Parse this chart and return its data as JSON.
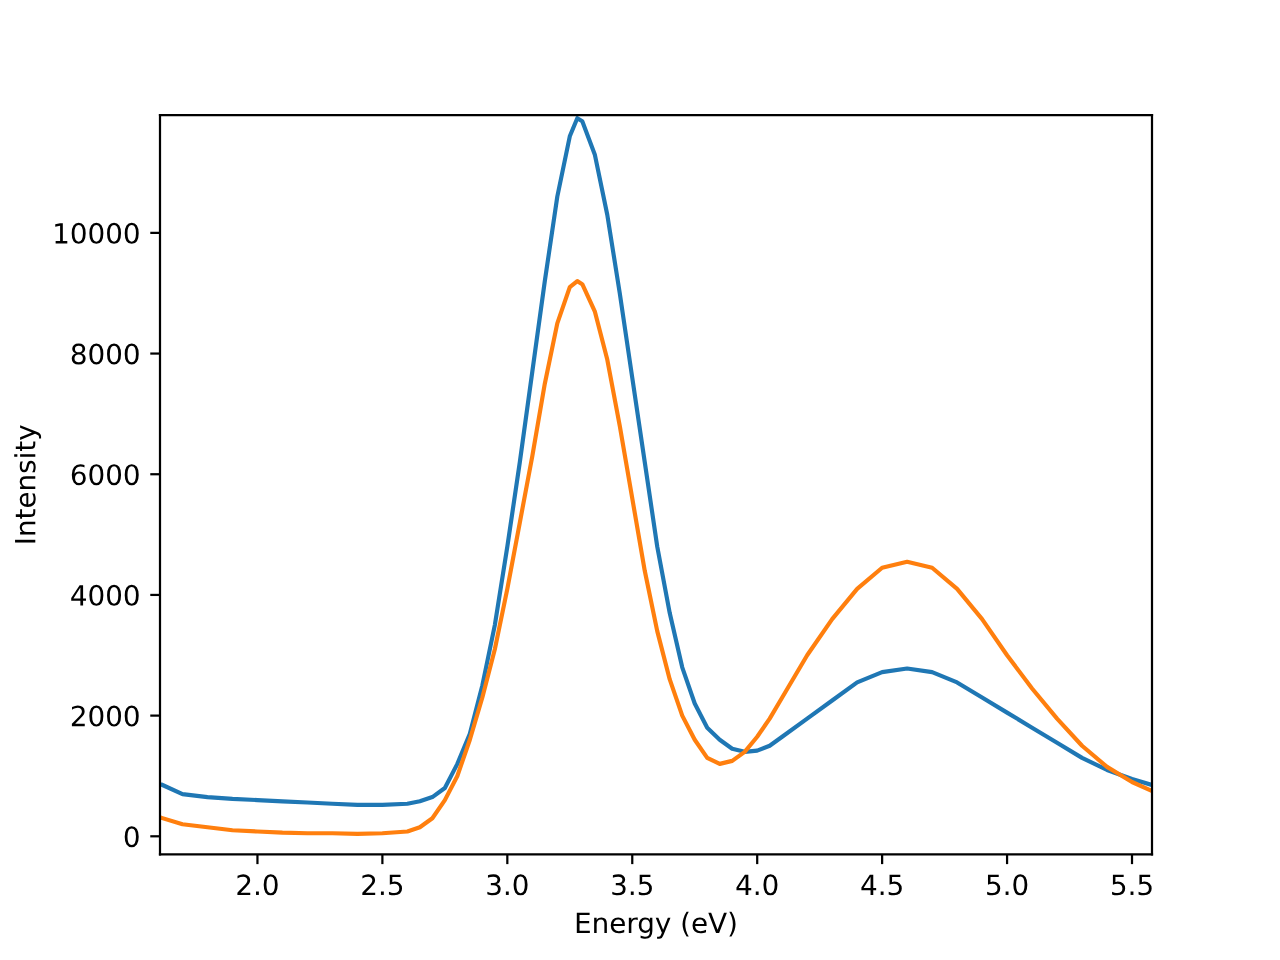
{
  "chart_data": {
    "type": "line",
    "xlabel": "Energy (eV)",
    "ylabel": "Intensity",
    "xlim": [
      1.61,
      5.58
    ],
    "xticks": [
      {
        "value": 2,
        "label": "2.0"
      },
      2.5,
      {
        "value": 3,
        "label": "3.0"
      },
      3.5,
      {
        "value": 4,
        "label": "4.0"
      },
      4.5,
      {
        "value": 5,
        "label": "5.0"
      },
      5.5
    ],
    "ylim": [
      -300,
      11950
    ],
    "yticks": [
      0,
      2000,
      4000,
      6000,
      8000,
      10000
    ],
    "x": [
      1.62,
      1.7,
      1.8,
      1.9,
      2.0,
      2.1,
      2.2,
      2.3,
      2.4,
      2.5,
      2.6,
      2.65,
      2.7,
      2.75,
      2.8,
      2.85,
      2.9,
      2.95,
      3.0,
      3.05,
      3.1,
      3.15,
      3.2,
      3.25,
      3.28,
      3.3,
      3.35,
      3.4,
      3.45,
      3.5,
      3.55,
      3.6,
      3.65,
      3.7,
      3.75,
      3.8,
      3.85,
      3.9,
      3.95,
      4.0,
      4.05,
      4.1,
      4.2,
      4.3,
      4.4,
      4.5,
      4.6,
      4.7,
      4.8,
      4.9,
      5.0,
      5.1,
      5.2,
      5.3,
      5.4,
      5.5,
      5.58
    ],
    "series": [
      {
        "color": "#1f77b4",
        "values": [
          850,
          700,
          650,
          620,
          600,
          580,
          560,
          540,
          520,
          520,
          540,
          580,
          650,
          800,
          1200,
          1700,
          2500,
          3500,
          4800,
          6200,
          7700,
          9200,
          10600,
          11600,
          11900,
          11850,
          11300,
          10300,
          9000,
          7600,
          6200,
          4800,
          3700,
          2800,
          2200,
          1800,
          1600,
          1450,
          1400,
          1420,
          1500,
          1650,
          1950,
          2250,
          2550,
          2720,
          2780,
          2720,
          2550,
          2300,
          2050,
          1800,
          1550,
          1300,
          1100,
          950,
          850
        ]
      },
      {
        "color": "#ff7f0e",
        "values": [
          300,
          200,
          150,
          100,
          80,
          60,
          50,
          50,
          40,
          50,
          80,
          150,
          300,
          600,
          1000,
          1600,
          2300,
          3100,
          4100,
          5200,
          6300,
          7500,
          8500,
          9100,
          9200,
          9150,
          8700,
          7900,
          6800,
          5600,
          4400,
          3400,
          2600,
          2000,
          1600,
          1300,
          1200,
          1250,
          1400,
          1650,
          1950,
          2300,
          3000,
          3600,
          4100,
          4450,
          4550,
          4450,
          4100,
          3600,
          3000,
          2450,
          1950,
          1500,
          1150,
          900,
          750
        ]
      }
    ]
  }
}
